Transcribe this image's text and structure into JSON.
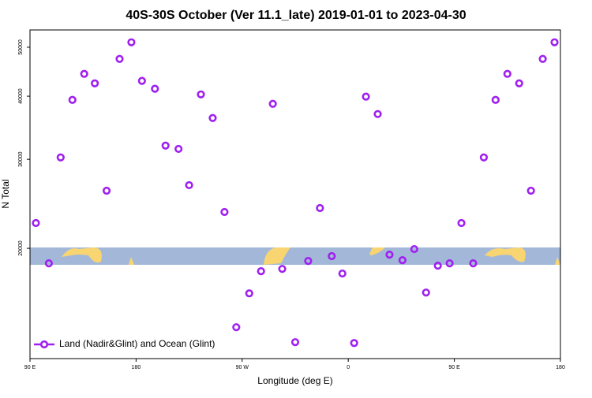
{
  "chart_data": {
    "type": "scatter",
    "title": "40S-30S October (Ver 11.1_late)   2019-01-01 to 2023-04-30",
    "x_label": "Longitude (deg E)",
    "y_label": "N Total",
    "y_log": true,
    "xlim": [
      90,
      540
    ],
    "xticks": [
      {
        "value": 90,
        "label": "90 E"
      },
      180,
      {
        "value": 270,
        "label": "90 W"
      },
      {
        "value": 360,
        "label": "0"
      },
      {
        "value": 450,
        "label": "90 E"
      },
      {
        "value": 540,
        "label": "180"
      }
    ],
    "ylim": [
      12100,
      54100
    ],
    "yticks": [
      20000,
      30000,
      40000,
      50000
    ],
    "legend": "bottom-left",
    "series": [
      {
        "name": "Land (Nadir&Glint) and Ocean (Glint)",
        "color": "#a020f0",
        "x": [
          95,
          106,
          116,
          126,
          136,
          145,
          155,
          166,
          176,
          185,
          196,
          205,
          216,
          225,
          235,
          245,
          255,
          265,
          276,
          286,
          296,
          304,
          315,
          326,
          336,
          346,
          355,
          365,
          375,
          385,
          395,
          406,
          416,
          426,
          436,
          446,
          456,
          466,
          475,
          485,
          495,
          505,
          515,
          525,
          535
        ],
        "values": [
          22440,
          18680,
          30260,
          39330,
          44290,
          42420,
          26000,
          47410,
          51140,
          42890,
          41380,
          31940,
          31460,
          26670,
          40330,
          36220,
          23600,
          13960,
          16290,
          18020,
          38630,
          18210,
          13040,
          18880,
          24030,
          19300,
          17830,
          12990,
          39920,
          36880,
          19430,
          18950,
          19930,
          16350,
          18480,
          18680,
          22440,
          18680,
          30260,
          39330,
          44290,
          42420,
          26000,
          47410,
          51140
        ]
      }
    ]
  }
}
